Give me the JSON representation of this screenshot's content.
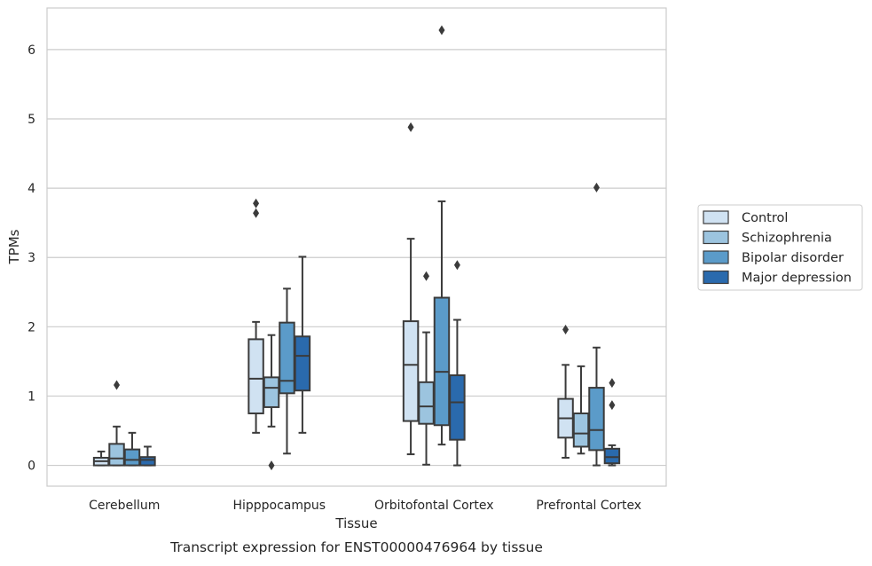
{
  "chart_data": {
    "type": "box",
    "title": "",
    "caption": "Transcript expression for ENST00000476964 by tissue",
    "xlabel": "Tissue",
    "ylabel": "TPMs",
    "ylim": [
      -0.3,
      6.6
    ],
    "yticks": [
      0,
      1,
      2,
      3,
      4,
      5,
      6
    ],
    "grid": "horizontal",
    "legend_position": "right",
    "categories": [
      "Cerebellum",
      "Hipppocampus",
      "Orbitofontal Cortex",
      "Prefrontal Cortex"
    ],
    "series": [
      {
        "name": "Control",
        "color": "#d0e2f2",
        "boxes": [
          {
            "whisker_low": 0.0,
            "q1": 0.0,
            "median": 0.06,
            "q3": 0.11,
            "whisker_high": 0.2,
            "outliers": []
          },
          {
            "whisker_low": 0.47,
            "q1": 0.75,
            "median": 1.25,
            "q3": 1.82,
            "whisker_high": 2.07,
            "outliers": [
              3.78,
              3.64
            ]
          },
          {
            "whisker_low": 0.16,
            "q1": 0.64,
            "median": 1.45,
            "q3": 2.08,
            "whisker_high": 3.27,
            "outliers": [
              4.88
            ]
          },
          {
            "whisker_low": 0.11,
            "q1": 0.4,
            "median": 0.68,
            "q3": 0.96,
            "whisker_high": 1.45,
            "outliers": [
              1.96
            ]
          }
        ]
      },
      {
        "name": "Schizophrenia",
        "color": "#9cc4df",
        "boxes": [
          {
            "whisker_low": 0.0,
            "q1": 0.0,
            "median": 0.1,
            "q3": 0.31,
            "whisker_high": 0.56,
            "outliers": [
              1.16
            ]
          },
          {
            "whisker_low": 0.56,
            "q1": 0.84,
            "median": 1.12,
            "q3": 1.27,
            "whisker_high": 1.88,
            "outliers": [
              0.0
            ]
          },
          {
            "whisker_low": 0.01,
            "q1": 0.6,
            "median": 0.85,
            "q3": 1.2,
            "whisker_high": 1.92,
            "outliers": [
              2.73
            ]
          },
          {
            "whisker_low": 0.17,
            "q1": 0.27,
            "median": 0.46,
            "q3": 0.75,
            "whisker_high": 1.43,
            "outliers": []
          }
        ]
      },
      {
        "name": "Bipolar disorder",
        "color": "#5b9bc9",
        "boxes": [
          {
            "whisker_low": 0.0,
            "q1": 0.0,
            "median": 0.08,
            "q3": 0.23,
            "whisker_high": 0.47,
            "outliers": []
          },
          {
            "whisker_low": 0.17,
            "q1": 1.04,
            "median": 1.22,
            "q3": 2.06,
            "whisker_high": 2.55,
            "outliers": []
          },
          {
            "whisker_low": 0.3,
            "q1": 0.58,
            "median": 1.35,
            "q3": 2.42,
            "whisker_high": 3.81,
            "outliers": [
              6.28
            ]
          },
          {
            "whisker_low": 0.0,
            "q1": 0.22,
            "median": 0.51,
            "q3": 1.12,
            "whisker_high": 1.7,
            "outliers": [
              4.01
            ]
          }
        ]
      },
      {
        "name": "Major depression",
        "color": "#2a6aad",
        "boxes": [
          {
            "whisker_low": 0.0,
            "q1": 0.0,
            "median": 0.08,
            "q3": 0.12,
            "whisker_high": 0.27,
            "outliers": []
          },
          {
            "whisker_low": 0.47,
            "q1": 1.08,
            "median": 1.58,
            "q3": 1.86,
            "whisker_high": 3.01,
            "outliers": []
          },
          {
            "whisker_low": 0.0,
            "q1": 0.37,
            "median": 0.91,
            "q3": 1.3,
            "whisker_high": 2.1,
            "outliers": [
              2.89
            ]
          },
          {
            "whisker_low": 0.0,
            "q1": 0.03,
            "median": 0.12,
            "q3": 0.24,
            "whisker_high": 0.29,
            "outliers": [
              1.19,
              0.87
            ]
          }
        ]
      }
    ]
  }
}
